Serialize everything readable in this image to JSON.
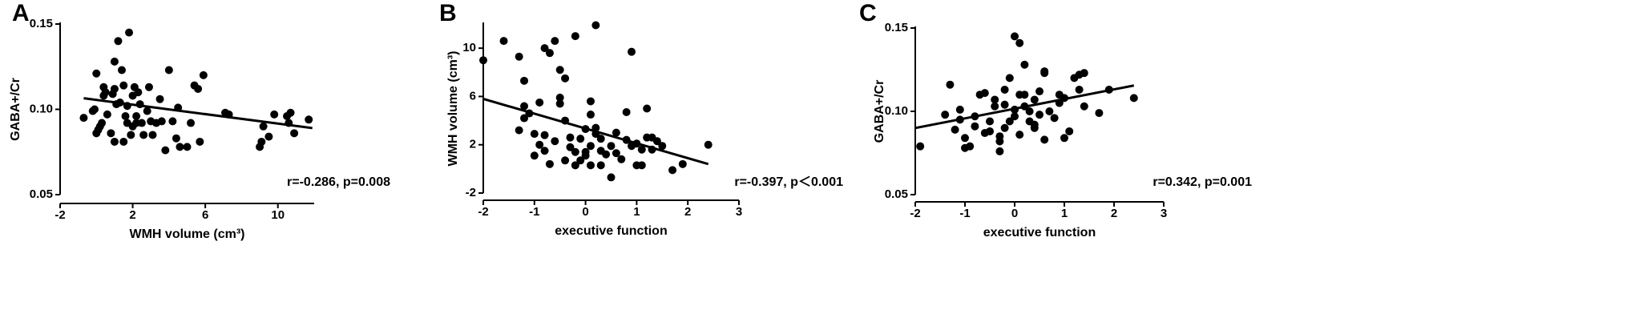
{
  "chart_data": [
    {
      "type": "scatter",
      "panel": "A",
      "xlabel": "WMH volume (cm³)",
      "ylabel": "GABA+/Cr",
      "annotation": "r=-0.286, p=0.008",
      "color": "#000000",
      "xlim": [
        -2,
        12
      ],
      "xticks": [
        -2,
        2,
        6,
        10
      ],
      "ylim": [
        0.05,
        0.15
      ],
      "yticks": [
        0.05,
        {
          "value": 0.1,
          "label": "0.10"
        },
        0.15
      ],
      "x": [
        -0.7,
        -0.2,
        -0.1,
        0.0,
        0.1,
        0.0,
        0.2,
        0.3,
        0.4,
        0.5,
        0.6,
        0.4,
        0.9,
        1.0,
        1.1,
        1.2,
        1.3,
        1.4,
        1.5,
        1.6,
        1.7,
        1.7,
        1.8,
        1.9,
        1.0,
        1.0,
        2.0,
        2.1,
        2.2,
        2.3,
        2.4,
        2.5,
        2.6,
        2.8,
        2.9,
        3.0,
        3.1,
        3.3,
        3.5,
        3.6,
        3.8,
        4.0,
        4.2,
        4.4,
        4.5,
        4.6,
        5.0,
        5.2,
        5.4,
        5.6,
        5.7,
        5.9,
        7.1,
        7.3,
        9.0,
        9.1,
        9.2,
        9.5,
        9.8,
        10.5,
        10.7,
        10.9,
        11.7,
        10.6,
        0.8,
        1.5,
        2.0,
        2.2
      ],
      "values": [
        0.095,
        0.099,
        0.1,
        0.121,
        0.088,
        0.086,
        0.09,
        0.092,
        0.108,
        0.11,
        0.097,
        0.113,
        0.109,
        0.128,
        0.103,
        0.14,
        0.104,
        0.123,
        0.114,
        0.096,
        0.102,
        0.092,
        0.145,
        0.085,
        0.081,
        0.112,
        0.108,
        0.113,
        0.092,
        0.11,
        0.103,
        0.092,
        0.085,
        0.099,
        0.113,
        0.093,
        0.085,
        0.092,
        0.106,
        0.093,
        0.076,
        0.123,
        0.093,
        0.083,
        0.101,
        0.078,
        0.078,
        0.092,
        0.114,
        0.112,
        0.081,
        0.12,
        0.098,
        0.097,
        0.078,
        0.081,
        0.09,
        0.084,
        0.097,
        0.096,
        0.098,
        0.086,
        0.094,
        0.092,
        0.086,
        0.081,
        0.09,
        0.096
      ],
      "fit_line": {
        "x": [
          -0.7,
          11.9
        ],
        "values": [
          0.1065,
          0.089
        ]
      }
    },
    {
      "type": "scatter",
      "panel": "B",
      "xlabel": "executive function",
      "ylabel": "WMH volume (cm³)",
      "annotation": "r=-0.397, p＜0.001",
      "color": "#000000",
      "xlim": [
        -2,
        3
      ],
      "xticks": [
        -2,
        -1,
        0,
        1,
        2,
        3
      ],
      "ylim": [
        -2,
        12
      ],
      "yticks": [
        -2,
        2,
        6,
        10
      ],
      "x": [
        -2.0,
        -1.6,
        -1.3,
        -1.2,
        -1.2,
        -1.1,
        -1.2,
        -1.3,
        -1.0,
        -0.9,
        -1.0,
        -0.8,
        -0.7,
        -0.6,
        -0.5,
        -0.4,
        -0.5,
        -0.5,
        -0.4,
        -0.3,
        -0.3,
        -0.4,
        -0.7,
        -0.6,
        -0.8,
        -0.9,
        -0.2,
        -0.2,
        -0.1,
        0.0,
        0.0,
        0.1,
        0.1,
        0.1,
        0.2,
        0.2,
        0.3,
        0.3,
        0.3,
        0.4,
        0.5,
        0.5,
        0.6,
        0.7,
        0.8,
        0.8,
        0.9,
        0.9,
        1.0,
        1.0,
        1.1,
        1.2,
        1.3,
        1.3,
        1.4,
        1.5,
        1.1,
        1.7,
        1.9,
        2.4,
        -0.1,
        0.0,
        -0.2,
        0.2,
        0.6,
        1.2,
        -0.8,
        0.1
      ],
      "values": [
        9.0,
        10.6,
        9.3,
        7.3,
        5.2,
        4.6,
        4.2,
        3.2,
        2.9,
        5.5,
        1.1,
        10.0,
        9.6,
        10.6,
        8.2,
        7.5,
        5.9,
        5.4,
        4.0,
        2.6,
        1.8,
        0.7,
        0.4,
        2.3,
        2.8,
        2.0,
        0.3,
        1.4,
        2.5,
        1.4,
        1.1,
        0.3,
        5.6,
        4.5,
        3.4,
        2.9,
        2.5,
        1.5,
        0.3,
        1.2,
        -0.7,
        1.9,
        1.3,
        0.8,
        2.4,
        4.7,
        9.7,
        1.9,
        0.3,
        2.1,
        1.6,
        2.6,
        2.6,
        1.6,
        2.3,
        1.9,
        0.3,
        -0.1,
        0.4,
        2.0,
        0.7,
        3.3,
        11.0,
        11.9,
        3.0,
        5.0,
        1.5,
        1.9
      ],
      "fit_line": {
        "x": [
          -2,
          2.4
        ],
        "values": [
          5.8,
          0.4
        ]
      }
    },
    {
      "type": "scatter",
      "panel": "C",
      "xlabel": "executive function",
      "ylabel": "GABA+/Cr",
      "annotation": "r=0.342, p=0.001",
      "color": "#000000",
      "xlim": [
        -2,
        3
      ],
      "xticks": [
        -2,
        -1,
        0,
        1,
        2,
        3
      ],
      "ylim": [
        0.05,
        0.15
      ],
      "yticks": [
        0.05,
        {
          "value": 0.1,
          "label": "0.10"
        },
        0.15
      ],
      "x": [
        -1.9,
        -1.4,
        -1.3,
        -1.2,
        -1.1,
        -1.1,
        -1.0,
        -0.9,
        -1.0,
        -0.8,
        -0.7,
        -0.6,
        -0.5,
        -0.5,
        -0.4,
        -0.4,
        -0.3,
        -0.3,
        -0.2,
        -0.2,
        -0.1,
        -0.1,
        0.0,
        0.0,
        0.1,
        0.1,
        0.1,
        0.2,
        0.2,
        0.3,
        0.3,
        0.4,
        0.4,
        0.5,
        0.5,
        0.6,
        0.6,
        0.6,
        0.7,
        0.8,
        0.9,
        1.0,
        1.0,
        1.1,
        1.2,
        1.3,
        1.3,
        1.4,
        1.4,
        1.7,
        1.9,
        2.4,
        -0.6,
        0.0,
        0.2,
        -0.2,
        -0.8,
        0.4,
        -0.3,
        0.9
      ],
      "values": [
        0.079,
        0.098,
        0.116,
        0.089,
        0.101,
        0.095,
        0.078,
        0.079,
        0.084,
        0.091,
        0.11,
        0.111,
        0.088,
        0.094,
        0.103,
        0.107,
        0.085,
        0.076,
        0.09,
        0.113,
        0.094,
        0.12,
        0.145,
        0.101,
        0.141,
        0.11,
        0.086,
        0.128,
        0.103,
        0.1,
        0.094,
        0.107,
        0.092,
        0.112,
        0.098,
        0.123,
        0.124,
        0.083,
        0.1,
        0.096,
        0.105,
        0.108,
        0.084,
        0.088,
        0.12,
        0.122,
        0.113,
        0.123,
        0.103,
        0.099,
        0.113,
        0.108,
        0.087,
        0.097,
        0.11,
        0.104,
        0.097,
        0.09,
        0.082,
        0.11
      ],
      "fit_line": {
        "x": [
          -2,
          2.4
        ],
        "values": [
          0.09,
          0.1155
        ]
      }
    }
  ]
}
